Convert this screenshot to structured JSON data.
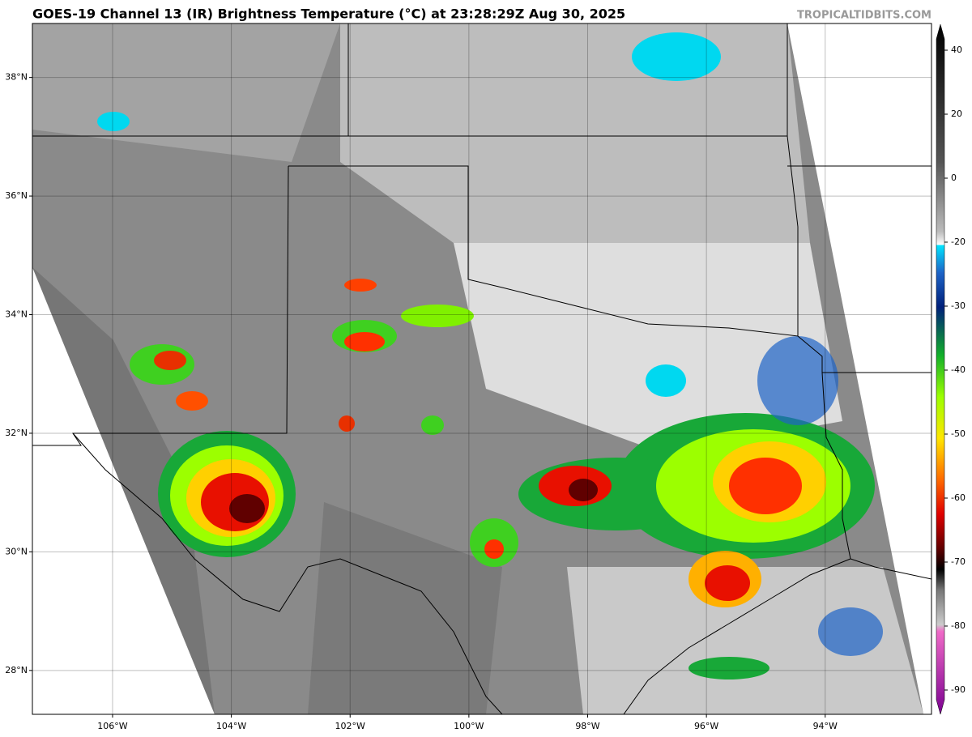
{
  "header": {
    "title": "GOES-19 Channel 13 (IR) Brightness Temperature (°C) at 23:28:29Z Aug 30, 2025",
    "credit": "TROPICALTIDBITS.COM"
  },
  "map": {
    "lon_range": [
      -107.35,
      -92.21
    ],
    "lat_range": [
      27.26,
      38.91
    ],
    "lat_labels": [
      {
        "value": 38,
        "label": "38°N"
      },
      {
        "value": 36,
        "label": "36°N"
      },
      {
        "value": 34,
        "label": "34°N"
      },
      {
        "value": 32,
        "label": "32°N"
      },
      {
        "value": 30,
        "label": "30°N"
      },
      {
        "value": 28,
        "label": "28°N"
      }
    ],
    "lon_labels": [
      {
        "value": -106,
        "label": "106°W"
      },
      {
        "value": -104,
        "label": "104°W"
      },
      {
        "value": -102,
        "label": "102°W"
      },
      {
        "value": -100,
        "label": "100°W"
      },
      {
        "value": -98,
        "label": "98°W"
      },
      {
        "value": -96,
        "label": "96°W"
      },
      {
        "value": -94,
        "label": "94°W"
      }
    ]
  },
  "colorbar": {
    "ticks": [
      40,
      20,
      0,
      -20,
      -30,
      -40,
      -50,
      -60,
      -70,
      -80,
      -90
    ]
  }
}
